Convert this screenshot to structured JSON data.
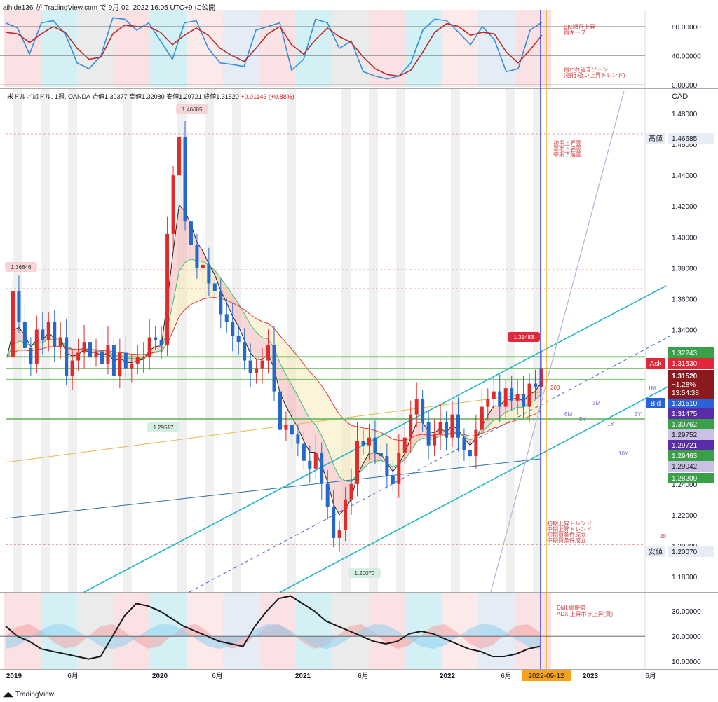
{
  "header": {
    "publisher_line": "aihide136 が TradingView.com で 9月 02, 2022 16:05 UTC+9 に公開"
  },
  "ohlc_line": {
    "symbol": "米ドル／加ドル, 1週, OANDA",
    "open": "始値1.30377",
    "high": "高値1.32080",
    "low": "安値1.29721",
    "close": "終値1.31520",
    "change": "+0.01143 (+0.88%)"
  },
  "currency_label": "CAD",
  "footer": {
    "logo_text": "TradingView"
  },
  "colors": {
    "bull": "#e02b2b",
    "bear": "#2468c9",
    "channel": "#23b6c7",
    "green_level": "#66b85a",
    "stoch_k": "#2f8fe0",
    "stoch_d": "#c0282a",
    "adx": "#1a1a1a",
    "di_plus": "#60c050",
    "cursor": "#2f3bd6",
    "current_date": "#f7a21b"
  },
  "chart_data": [
    {
      "id": "stochastic_panel",
      "type": "line",
      "y_ticks": [
        80,
        40,
        0
      ],
      "y_tick_labels": [
        "80.00000",
        "40.00000",
        "0.00000"
      ],
      "ylim": [
        0,
        100
      ],
      "series": [
        {
          "values": [
            85,
            78,
            42,
            85,
            88,
            70,
            30,
            22,
            40,
            92,
            90,
            75,
            85,
            60,
            35,
            85,
            88,
            50,
            30,
            28,
            25,
            75,
            80,
            85,
            20,
            35,
            90,
            85,
            50,
            60,
            18,
            12,
            8,
            12,
            30,
            75,
            90,
            88,
            72,
            55,
            80,
            62,
            18,
            22,
            75,
            86
          ]
        },
        {
          "values": [
            72,
            70,
            58,
            70,
            80,
            72,
            50,
            35,
            38,
            70,
            82,
            80,
            80,
            72,
            55,
            68,
            78,
            68,
            50,
            40,
            32,
            50,
            70,
            80,
            55,
            42,
            62,
            78,
            66,
            58,
            38,
            22,
            14,
            12,
            20,
            45,
            72,
            84,
            80,
            68,
            72,
            70,
            45,
            30,
            48,
            68
          ]
        }
      ],
      "annotations": [
        "BK:順行上昇",
        "買キープ",
        "買われ過ぎゾーン",
        "(強行:強い上昇トレンド)"
      ]
    },
    {
      "id": "price_panel",
      "type": "candlestick",
      "title": "米ドル／加ドル, 1週, OANDA",
      "y_axis_label": "CAD",
      "ylim": [
        1.17,
        1.49
      ],
      "y_ticks": [
        1.48,
        1.46,
        1.44,
        1.42,
        1.4,
        1.38,
        1.36,
        1.34,
        1.32,
        1.3,
        1.28,
        1.26,
        1.24,
        1.22,
        1.2,
        1.18
      ],
      "y_tick_labels": [
        "1.48000",
        "1.46000",
        "1.44000",
        "1.42000",
        "1.40000",
        "1.38000",
        "1.36000",
        "1.34000",
        "1.32000",
        "1.30000",
        "1.28000",
        "1.26000",
        "1.24000",
        "1.22000",
        "1.20000",
        "1.18000"
      ],
      "x_ticks": [
        "2019",
        "6月",
        "2020",
        "6月",
        "2021",
        "6月",
        "2022",
        "6月",
        "2022-09-12",
        "2023",
        "6月"
      ],
      "close_path": [
        1.322,
        1.365,
        1.345,
        1.328,
        1.318,
        1.34,
        1.333,
        1.345,
        1.329,
        1.335,
        1.31,
        1.32,
        1.325,
        1.332,
        1.322,
        1.326,
        1.318,
        1.33,
        1.31,
        1.325,
        1.315,
        1.318,
        1.322,
        1.322,
        1.335,
        1.333,
        1.33,
        1.402,
        1.44,
        1.465,
        1.41,
        1.395,
        1.38,
        1.382,
        1.37,
        1.365,
        1.35,
        1.345,
        1.336,
        1.332,
        1.32,
        1.312,
        1.315,
        1.32,
        1.33,
        1.3,
        1.275,
        1.278,
        1.272,
        1.266,
        1.255,
        1.25,
        1.26,
        1.24,
        1.225,
        1.205,
        1.21,
        1.23,
        1.24,
        1.268,
        1.265,
        1.27,
        1.26,
        1.258,
        1.245,
        1.24,
        1.26,
        1.27,
        1.285,
        1.295,
        1.28,
        1.265,
        1.272,
        1.28,
        1.27,
        1.285,
        1.27,
        1.262,
        1.258,
        1.275,
        1.29,
        1.295,
        1.3,
        1.29,
        1.302,
        1.294,
        1.298,
        1.29,
        1.305,
        1.303,
        1.315
      ],
      "annotations": [
        "1.46685",
        "1.20070",
        "1.29517",
        "1.36646",
        "1.31483",
        "初期上昇雲",
        "高期上昇雲",
        "中期下落雲",
        "初期上昇トレンド",
        "中期上昇トレンド",
        "初期買条件成立",
        "中期買条件成立",
        "200",
        "1M",
        "3M",
        "6M",
        "5Y",
        "1Y",
        "3Y",
        "10Y",
        "20"
      ],
      "price_labels": [
        {
          "text": "高値",
          "value": "1.46685"
        },
        {
          "text": "Ask",
          "value": "1.31530"
        },
        {
          "text": "Bid",
          "value": "1.31510"
        },
        {
          "text": "安値",
          "value": "1.20070"
        },
        {
          "text": "",
          "value": "1.32243"
        },
        {
          "text": "",
          "value": "1.31475"
        },
        {
          "text": "",
          "value": "1.30762"
        },
        {
          "text": "",
          "value": "1.29752"
        },
        {
          "text": "",
          "value": "1.29721"
        },
        {
          "text": "",
          "value": "1.29463"
        },
        {
          "text": "",
          "value": "1.29042"
        },
        {
          "text": "",
          "value": "1.28209"
        }
      ],
      "last_price": {
        "value": "1.31520",
        "change": "−1.28%",
        "countdown": "13:54:38"
      }
    },
    {
      "id": "dmi_panel",
      "type": "area",
      "ylim": [
        7,
        37
      ],
      "y_ticks": [
        30,
        20,
        10
      ],
      "y_tick_labels": [
        "30.00000",
        "20.00000",
        "10.00000"
      ],
      "series": [
        {
          "values": [
            24,
            20,
            18,
            15,
            14,
            13,
            12,
            11,
            12,
            20,
            28,
            33,
            32,
            30,
            27,
            24,
            22,
            20,
            18,
            17,
            16,
            24,
            30,
            35,
            36,
            33,
            30,
            26,
            24,
            22,
            20,
            18,
            17,
            18,
            21,
            22,
            21,
            19,
            17,
            15,
            14,
            12,
            12,
            13,
            15,
            16
          ]
        }
      ],
      "annotations": [
        "DMI:買優勢",
        "ADX:上昇ボラ上昇(買)"
      ]
    }
  ]
}
